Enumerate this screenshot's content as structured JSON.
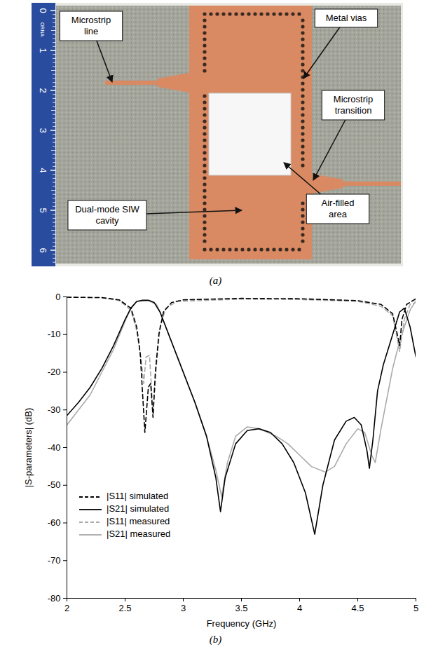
{
  "photo": {
    "labels": [
      "Microstrip line",
      "Metal vias",
      "Microstrip transition",
      "Dual-mode SIW cavity",
      "Air-filled area"
    ],
    "ruler_ticks": [
      0,
      1,
      2,
      3,
      4,
      5,
      6
    ],
    "ruler_label": "ORNA",
    "caption": "(a)"
  },
  "chart_data": {
    "type": "line",
    "caption": "(b)",
    "x_label": "Frequency (GHz)",
    "y_label": "|S-parameters| (dB)",
    "xlim": [
      2,
      5
    ],
    "xticks": [
      2,
      2.5,
      3,
      3.5,
      4,
      4.5,
      5
    ],
    "ylim": [
      -80,
      0
    ],
    "yticks": [
      -80,
      -70,
      -60,
      -50,
      -40,
      -30,
      -20,
      -10,
      0
    ],
    "grid": false,
    "legend": "bottom-left",
    "series": [
      {
        "name": "|S11| simulated",
        "color": "#000000",
        "line_style": "dashed",
        "x": [
          2.0,
          2.3,
          2.45,
          2.55,
          2.6,
          2.63,
          2.67,
          2.7,
          2.72,
          2.74,
          2.76,
          2.79,
          2.83,
          2.9,
          3.0,
          3.5,
          4.0,
          4.5,
          4.7,
          4.8,
          4.84,
          4.86,
          4.88,
          4.92,
          5.0
        ],
        "values": [
          -0.1,
          -0.2,
          -0.8,
          -3,
          -8,
          -15,
          -36,
          -24,
          -23,
          -32,
          -20,
          -10,
          -4,
          -1.5,
          -0.8,
          -0.4,
          -0.5,
          -1.0,
          -2,
          -4.5,
          -10,
          -13,
          -6,
          -2,
          -0.5
        ]
      },
      {
        "name": "|S21| simulated",
        "color": "#000000",
        "line_style": "solid",
        "x": [
          2.0,
          2.1,
          2.2,
          2.3,
          2.4,
          2.5,
          2.55,
          2.6,
          2.65,
          2.7,
          2.75,
          2.8,
          2.85,
          2.9,
          3.0,
          3.1,
          3.2,
          3.28,
          3.32,
          3.36,
          3.45,
          3.55,
          3.65,
          3.75,
          3.85,
          3.95,
          4.05,
          4.13,
          4.2,
          4.3,
          4.4,
          4.47,
          4.53,
          4.58,
          4.6,
          4.63,
          4.67,
          4.72,
          4.8,
          4.86,
          4.9,
          4.95,
          5.0
        ],
        "values": [
          -31.5,
          -28,
          -24,
          -19,
          -13,
          -6,
          -3,
          -1.2,
          -0.9,
          -0.9,
          -1.5,
          -4,
          -8,
          -12,
          -20,
          -28,
          -37,
          -48,
          -57,
          -48,
          -39,
          -35.5,
          -35,
          -36,
          -39,
          -44,
          -52,
          -63,
          -50,
          -38,
          -33,
          -32,
          -34,
          -41,
          -45.5,
          -38,
          -25,
          -18,
          -10,
          -4,
          -3,
          -8,
          -16
        ]
      },
      {
        "name": "|S11| measured",
        "color": "#aaaaaa",
        "line_style": "dashed",
        "x": [
          2.0,
          2.3,
          2.45,
          2.55,
          2.6,
          2.64,
          2.66,
          2.68,
          2.71,
          2.74,
          2.77,
          2.8,
          2.85,
          2.95,
          3.5,
          4.0,
          4.5,
          4.7,
          4.8,
          4.86,
          4.9,
          4.95,
          5.0
        ],
        "values": [
          -0.1,
          -0.2,
          -1,
          -3.5,
          -9,
          -17,
          -23,
          -16,
          -15.5,
          -31,
          -18,
          -8,
          -3,
          -1.2,
          -0.6,
          -0.7,
          -1.2,
          -2.5,
          -5,
          -14.5,
          -6,
          -2,
          -1.5
        ]
      },
      {
        "name": "|S21| measured",
        "color": "#aaaaaa",
        "line_style": "solid",
        "x": [
          2.0,
          2.1,
          2.2,
          2.3,
          2.4,
          2.5,
          2.55,
          2.6,
          2.7,
          2.77,
          2.8,
          2.9,
          3.0,
          3.1,
          3.2,
          3.28,
          3.33,
          3.38,
          3.45,
          3.55,
          3.65,
          3.8,
          3.9,
          4.0,
          4.1,
          4.22,
          4.3,
          4.4,
          4.5,
          4.56,
          4.62,
          4.65,
          4.7,
          4.75,
          4.8,
          4.85,
          4.9,
          4.95,
          5.0
        ],
        "values": [
          -34,
          -30,
          -26,
          -20,
          -14,
          -6.5,
          -3,
          -1.2,
          -1.0,
          -2,
          -4,
          -12,
          -20,
          -28,
          -37,
          -46,
          -53,
          -44,
          -37,
          -34.5,
          -35,
          -37,
          -39,
          -42,
          -45,
          -46.5,
          -45,
          -39,
          -35,
          -36,
          -42,
          -44,
          -35,
          -27,
          -19,
          -13,
          -8,
          -3.5,
          -1
        ]
      }
    ]
  }
}
